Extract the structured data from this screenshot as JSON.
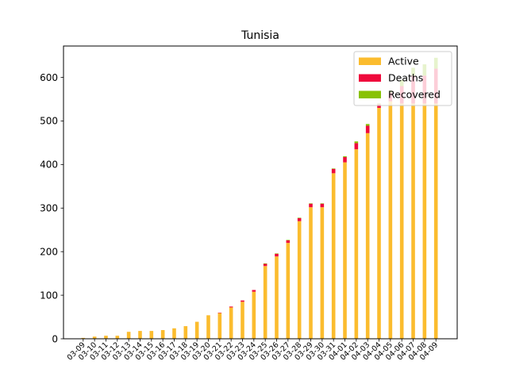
{
  "chart_data": {
    "type": "bar",
    "stacked": true,
    "title": "Tunisia",
    "xlabel": "",
    "ylabel": "",
    "ylim": [
      0,
      672
    ],
    "yticks": [
      0,
      100,
      200,
      300,
      400,
      500,
      600
    ],
    "categories": [
      "03-09",
      "03-10",
      "03-11",
      "03-12",
      "03-13",
      "03-14",
      "03-15",
      "03-16",
      "03-17",
      "03-18",
      "03-19",
      "03-20",
      "03-21",
      "03-22",
      "03-23",
      "03-24",
      "03-25",
      "03-26",
      "03-27",
      "03-28",
      "03-29",
      "03-30",
      "03-31",
      "04-01",
      "04-02",
      "04-03",
      "04-04",
      "04-05",
      "04-06",
      "04-07",
      "04-08",
      "04-09"
    ],
    "series": [
      {
        "name": "Active",
        "color": "#fbbc2e",
        "values": [
          2,
          5,
          7,
          7,
          16,
          18,
          18,
          20,
          24,
          29,
          39,
          54,
          59,
          72,
          85,
          108,
          167,
          189,
          220,
          270,
          302,
          302,
          380,
          405,
          435,
          472,
          530,
          545,
          540,
          540,
          540,
          540
        ]
      },
      {
        "name": "Deaths",
        "color": "#ef0a3c",
        "values": [
          0,
          0,
          0,
          0,
          0,
          0,
          0,
          0,
          0,
          0,
          0,
          0,
          1,
          2,
          3,
          4,
          5,
          6,
          6,
          7,
          8,
          8,
          10,
          12,
          14,
          17,
          8,
          20,
          40,
          64,
          64,
          80
        ]
      },
      {
        "name": "Recovered",
        "color": "#88c206",
        "values": [
          0,
          0,
          0,
          0,
          0,
          0,
          0,
          0,
          0,
          0,
          0,
          0,
          0,
          0,
          0,
          0,
          1,
          1,
          1,
          1,
          1,
          1,
          1,
          2,
          4,
          4,
          2,
          5,
          15,
          18,
          26,
          25
        ]
      }
    ],
    "legend": "upper-right",
    "grid": false
  }
}
